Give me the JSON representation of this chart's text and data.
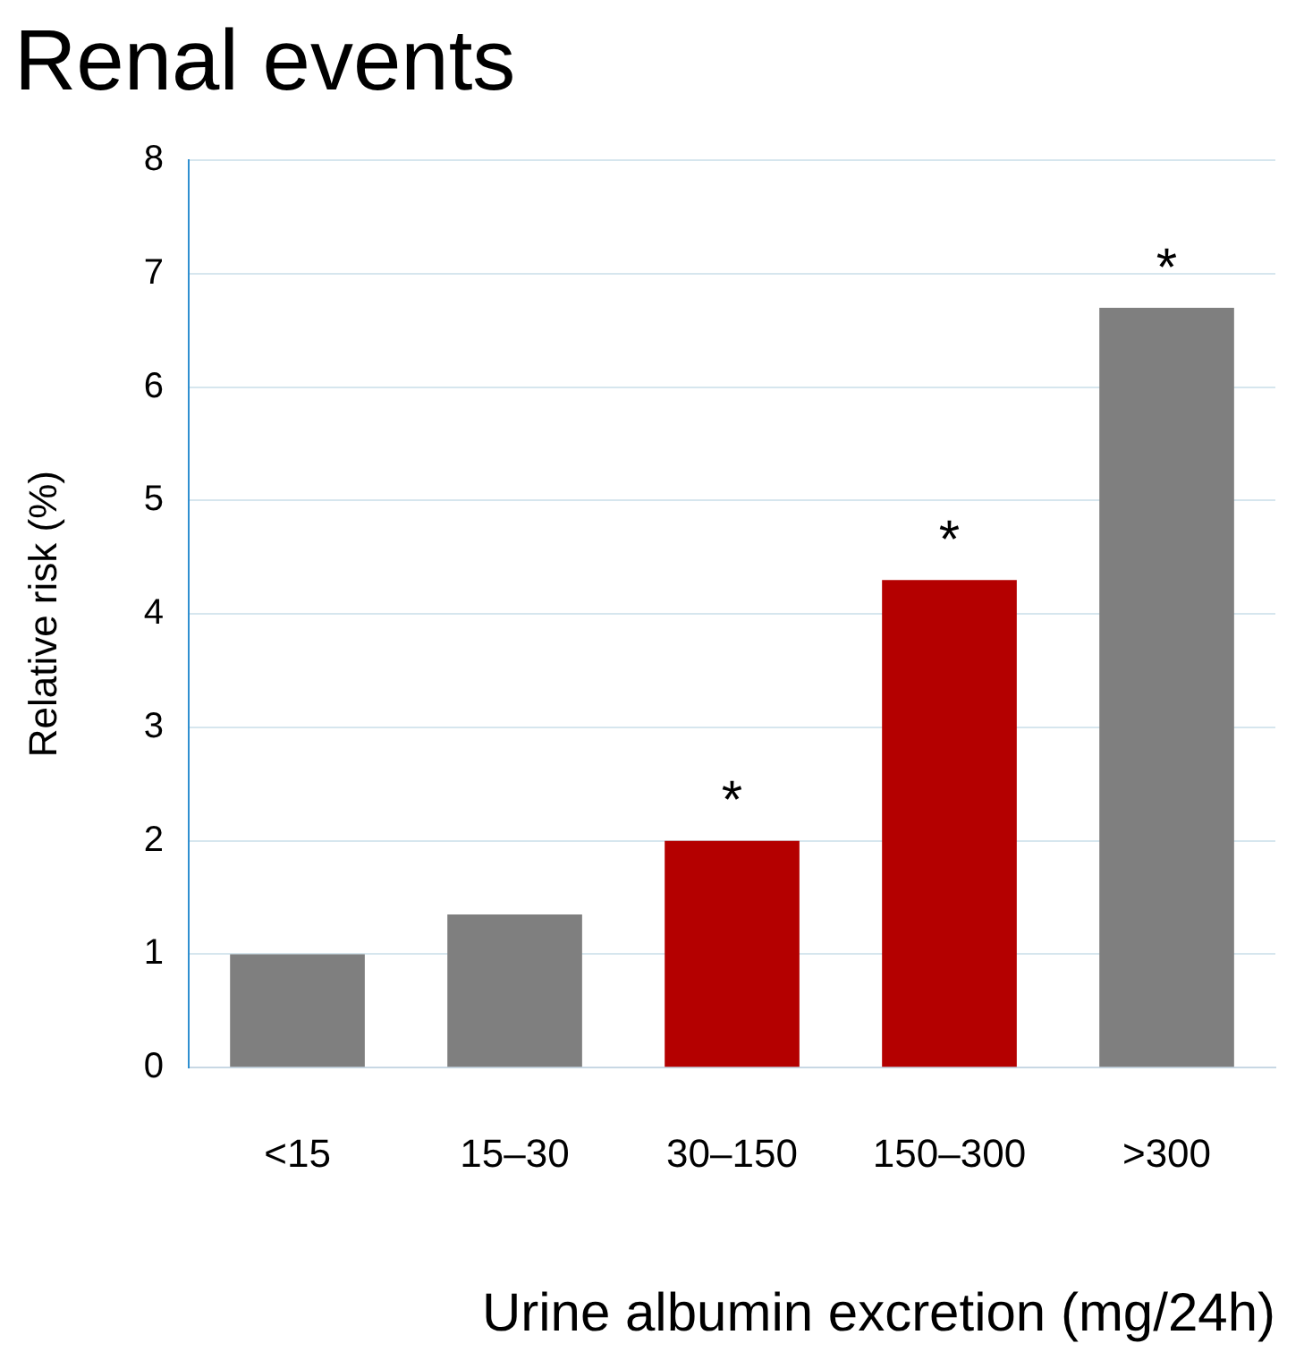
{
  "chart_data": {
    "type": "bar",
    "title": "Renal events",
    "xlabel": "Urine albumin excretion (mg/24h)",
    "ylabel": "Relative risk (%)",
    "categories": [
      "<15",
      "15–30",
      "30–150",
      "150–300",
      ">300"
    ],
    "values": [
      1.0,
      1.35,
      2.0,
      4.3,
      6.7
    ],
    "colors": [
      "#7f7f7f",
      "#7f7f7f",
      "#b40000",
      "#b40000",
      "#7f7f7f"
    ],
    "ylim": [
      0,
      8
    ],
    "yticks": [
      0,
      1,
      2,
      3,
      4,
      5,
      6,
      7,
      8
    ],
    "grid": "y",
    "legend": false,
    "annotations": [
      {
        "text": "*",
        "x": "30–150",
        "y": 2.0
      },
      {
        "text": "*",
        "x": "150–300",
        "y": 4.3
      },
      {
        "text": "*",
        "x": ">300",
        "y": 6.7
      }
    ]
  }
}
